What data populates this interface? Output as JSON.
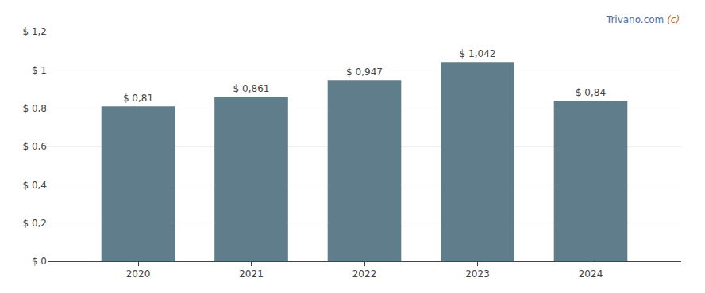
{
  "chart_data": {
    "type": "bar",
    "x": [
      2020,
      2021,
      2022,
      2023,
      2024
    ],
    "values": [
      0.81,
      0.861,
      0.947,
      1.042,
      0.84
    ],
    "value_labels": [
      "$ 0,81",
      "$ 0,861",
      "$ 0,947",
      "$ 1,042",
      "$ 0,84"
    ],
    "data_labels": true,
    "color": "#607d8b",
    "xlim": [
      2019.2,
      2024.8
    ],
    "xticks": [
      2020,
      2021,
      2022,
      2023,
      2024
    ],
    "ylim": [
      0,
      1.2
    ],
    "yticks": [
      {
        "value": 0,
        "label": "$ 0"
      },
      {
        "value": 0.2,
        "label": "$ 0,2"
      },
      {
        "value": 0.4,
        "label": "$ 0,4"
      },
      {
        "value": 0.6,
        "label": "$ 0,6"
      },
      {
        "value": 0.8,
        "label": "$ 0,8"
      },
      {
        "value": 1.0,
        "label": "$ 1"
      },
      {
        "value": 1.2,
        "label": "$ 1,2"
      }
    ],
    "grid": "y",
    "annotations": [
      {
        "text": "(c)",
        "color": "#d4601a"
      },
      {
        "text": " Trivano.com",
        "color": "#4a6fa5"
      }
    ]
  }
}
